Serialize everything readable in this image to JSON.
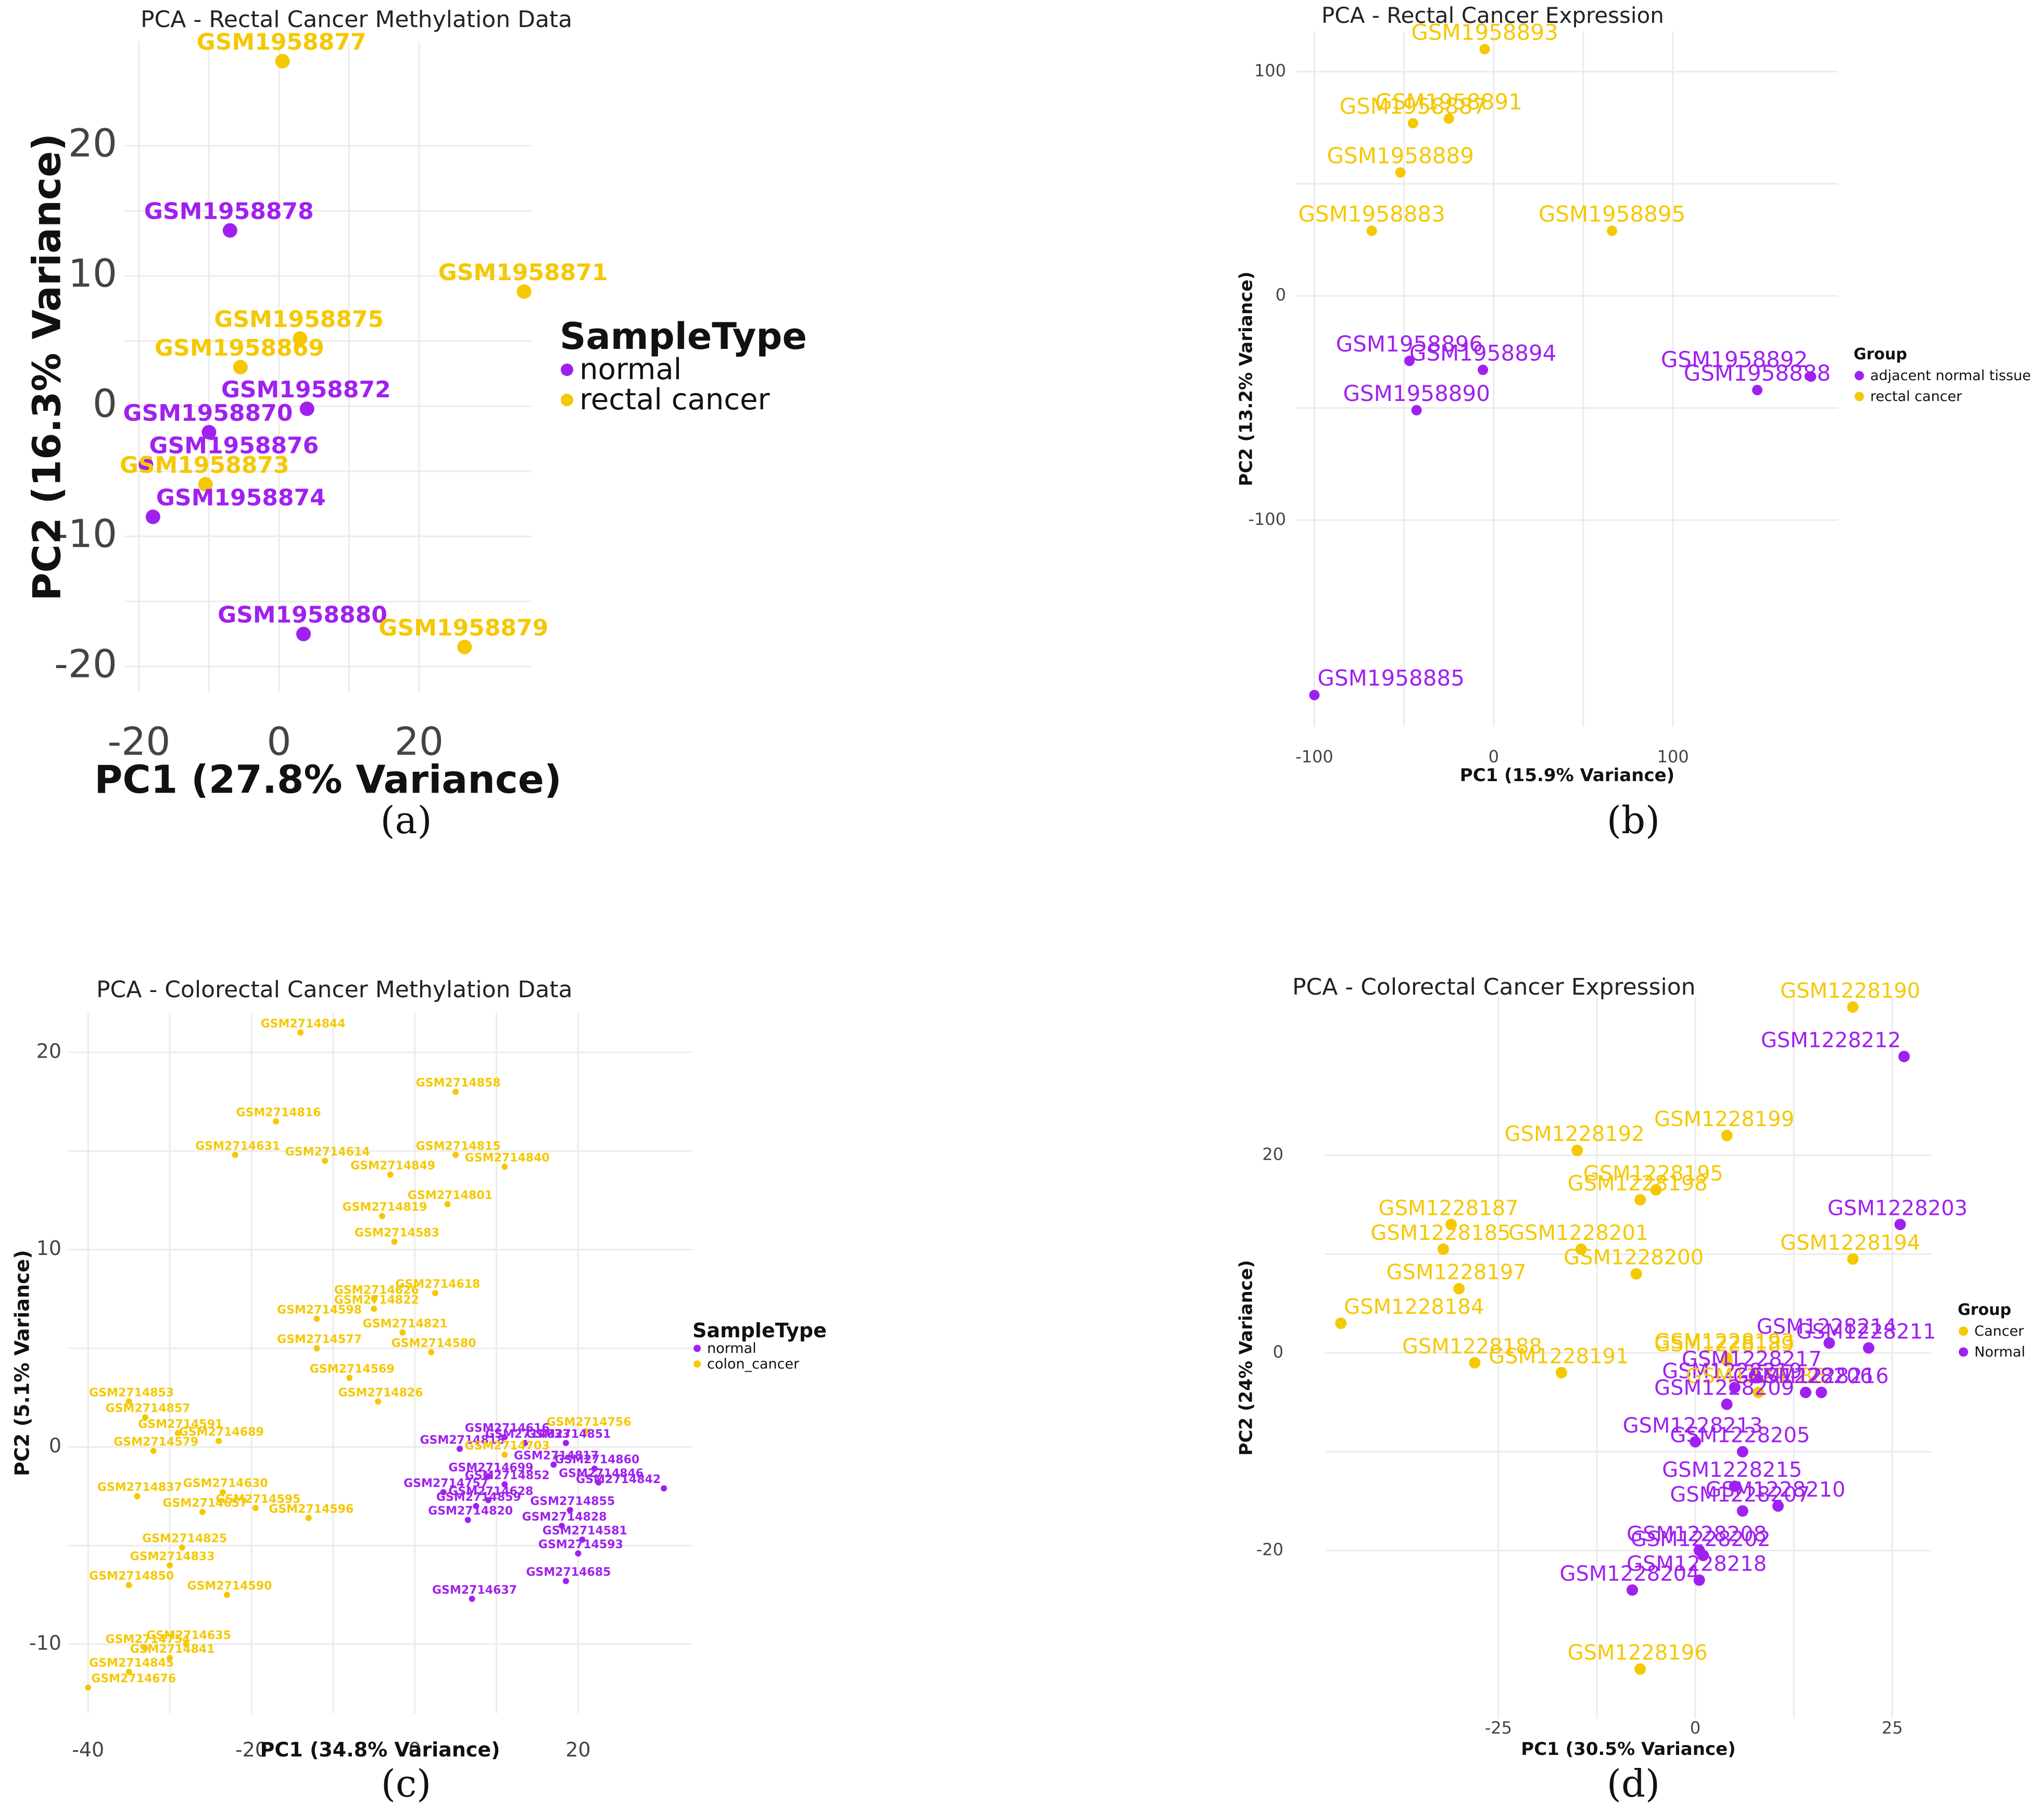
{
  "colors": {
    "normal": "#a020f0",
    "cancer": "#f5c800",
    "grid": "#ebebeb"
  },
  "chart_data": [
    {
      "id": "a",
      "type": "scatter",
      "panel_label": "(a)",
      "title": "PCA - Rectal Cancer Methylation Data",
      "xlabel": "PC1 (27.8% Variance)",
      "ylabel": "PC2 (16.3% Variance)",
      "xlim": [
        -22,
        36
      ],
      "ylim": [
        -22,
        28
      ],
      "xticks": [
        -20,
        0,
        20
      ],
      "yticks": [
        -20,
        -10,
        0,
        10,
        20
      ],
      "grid": true,
      "legend": {
        "title": "SampleType",
        "position": "right",
        "entries": [
          {
            "label": "normal",
            "group": "normal"
          },
          {
            "label": "rectal cancer",
            "group": "cancer"
          }
        ]
      },
      "points": [
        {
          "label": "GSM1958877",
          "x": 0.5,
          "y": 26.5,
          "group": "cancer"
        },
        {
          "label": "GSM1958878",
          "x": -7,
          "y": 13.5,
          "group": "normal"
        },
        {
          "label": "GSM1958871",
          "x": 35,
          "y": 8.8,
          "group": "cancer"
        },
        {
          "label": "GSM1958875",
          "x": 3,
          "y": 5.2,
          "group": "cancer"
        },
        {
          "label": "GSM1958869",
          "x": -5.5,
          "y": 3,
          "group": "cancer"
        },
        {
          "label": "GSM1958872",
          "x": 4,
          "y": -0.2,
          "group": "normal"
        },
        {
          "label": "GSM1958870",
          "x": -10,
          "y": -2,
          "group": "normal"
        },
        {
          "label": "GSM1958876",
          "x": -19,
          "y": -4.5,
          "group": "normal"
        },
        {
          "label": "GSM1958873",
          "x": -10.5,
          "y": -6,
          "group": "cancer"
        },
        {
          "label": "GSM1958874",
          "x": -18,
          "y": -8.5,
          "group": "normal"
        },
        {
          "label": "GSM1958880",
          "x": 3.5,
          "y": -17.5,
          "group": "normal"
        },
        {
          "label": "GSM1958879",
          "x": 26.5,
          "y": -18.5,
          "group": "cancer"
        }
      ]
    },
    {
      "id": "b",
      "type": "scatter",
      "panel_label": "(b)",
      "title": "PCA - Rectal Cancer Expression",
      "xlabel": "PC1 (15.9% Variance)",
      "ylabel": "PC2 (13.2% Variance)",
      "xlim": [
        -110,
        192
      ],
      "ylim": [
        -192,
        118
      ],
      "xticks": [
        -100,
        0,
        100
      ],
      "yticks": [
        -100,
        0,
        100
      ],
      "grid": true,
      "legend": {
        "title": "Group",
        "position": "right",
        "entries": [
          {
            "label": "adjacent normal tissue",
            "group": "normal"
          },
          {
            "label": "rectal cancer",
            "group": "cancer"
          }
        ]
      },
      "points": [
        {
          "label": "GSM1958893",
          "x": -5,
          "y": 110,
          "group": "cancer"
        },
        {
          "label": "GSM1958891",
          "x": -25,
          "y": 79,
          "group": "cancer"
        },
        {
          "label": "GSM1958887",
          "x": -45,
          "y": 77,
          "group": "cancer"
        },
        {
          "label": "GSM1958889",
          "x": -52,
          "y": 55,
          "group": "cancer"
        },
        {
          "label": "GSM1958883",
          "x": -68,
          "y": 29,
          "group": "cancer"
        },
        {
          "label": "GSM1958895",
          "x": 66,
          "y": 29,
          "group": "cancer"
        },
        {
          "label": "GSM1958896",
          "x": -47,
          "y": -29,
          "group": "normal"
        },
        {
          "label": "GSM1958894",
          "x": -6,
          "y": -33,
          "group": "normal"
        },
        {
          "label": "GSM1958890",
          "x": -43,
          "y": -51,
          "group": "normal"
        },
        {
          "label": "GSM1958892",
          "x": 177,
          "y": -36,
          "group": "normal"
        },
        {
          "label": "GSM1958888",
          "x": 147,
          "y": -42,
          "group": "normal"
        },
        {
          "label": "GSM1958885",
          "x": -100,
          "y": -178,
          "group": "normal"
        }
      ]
    },
    {
      "id": "c",
      "type": "scatter",
      "panel_label": "(c)",
      "title": "PCA - Colorectal Cancer Methylation Data",
      "xlabel": "PC1 (34.8% Variance)",
      "ylabel": "PC2 (5.1% Variance)",
      "xlim": [
        -42.5,
        34
      ],
      "ylim": [
        -13.5,
        22
      ],
      "xticks": [
        -40,
        -20,
        0,
        20
      ],
      "yticks": [
        -10,
        0,
        10,
        20
      ],
      "grid": true,
      "legend": {
        "title": "SampleType",
        "position": "right",
        "entries": [
          {
            "label": "normal",
            "group": "normal"
          },
          {
            "label": "colon_cancer",
            "group": "cancer"
          }
        ]
      },
      "points": [
        {
          "label": "GSM2714844",
          "x": -14,
          "y": 21,
          "group": "cancer"
        },
        {
          "label": "GSM2714858",
          "x": 5,
          "y": 18,
          "group": "cancer"
        },
        {
          "label": "GSM2714816",
          "x": -17,
          "y": 16.5,
          "group": "cancer"
        },
        {
          "label": "GSM2714631",
          "x": -22,
          "y": 14.8,
          "group": "cancer"
        },
        {
          "label": "GSM2714614",
          "x": -11,
          "y": 14.5,
          "group": "cancer"
        },
        {
          "label": "GSM2714849",
          "x": -3,
          "y": 13.8,
          "group": "cancer"
        },
        {
          "label": "GSM2714815",
          "x": 5,
          "y": 14.8,
          "group": "cancer"
        },
        {
          "label": "GSM2714840",
          "x": 11,
          "y": 14.2,
          "group": "cancer"
        },
        {
          "label": "GSM2714801",
          "x": 4,
          "y": 12.3,
          "group": "cancer"
        },
        {
          "label": "GSM2714819",
          "x": -4,
          "y": 11.7,
          "group": "cancer"
        },
        {
          "label": "GSM2714583",
          "x": -2.5,
          "y": 10.4,
          "group": "cancer"
        },
        {
          "label": "GSM2714626",
          "x": -5,
          "y": 7.5,
          "group": "cancer"
        },
        {
          "label": "GSM2714618",
          "x": 2.5,
          "y": 7.8,
          "group": "cancer"
        },
        {
          "label": "GSM2714822",
          "x": -5,
          "y": 7,
          "group": "cancer"
        },
        {
          "label": "GSM2714598",
          "x": -12,
          "y": 6.5,
          "group": "cancer"
        },
        {
          "label": "GSM2714821",
          "x": -1.5,
          "y": 5.8,
          "group": "cancer"
        },
        {
          "label": "GSM2714577",
          "x": -12,
          "y": 5,
          "group": "cancer"
        },
        {
          "label": "GSM2714580",
          "x": 2,
          "y": 4.8,
          "group": "cancer"
        },
        {
          "label": "GSM2714569",
          "x": -8,
          "y": 3.5,
          "group": "cancer"
        },
        {
          "label": "GSM2714826",
          "x": -4.5,
          "y": 2.3,
          "group": "cancer"
        },
        {
          "label": "GSM2714853",
          "x": -35,
          "y": 2.3,
          "group": "cancer"
        },
        {
          "label": "GSM2714857",
          "x": -33,
          "y": 1.5,
          "group": "cancer"
        },
        {
          "label": "GSM2714591",
          "x": -29,
          "y": 0.7,
          "group": "cancer"
        },
        {
          "label": "GSM2714689",
          "x": -24,
          "y": 0.3,
          "group": "cancer"
        },
        {
          "label": "GSM2714579",
          "x": -32,
          "y": -0.2,
          "group": "cancer"
        },
        {
          "label": "GSM2714756",
          "x": 21,
          "y": 0.8,
          "group": "cancer"
        },
        {
          "label": "GSM2714851",
          "x": 18.5,
          "y": 0.2,
          "group": "normal"
        },
        {
          "label": "GSM2714616",
          "x": 11,
          "y": 0.5,
          "group": "normal"
        },
        {
          "label": "GSM2714633",
          "x": 13.5,
          "y": 0.2,
          "group": "normal"
        },
        {
          "label": "GSM2714818",
          "x": 5.5,
          "y": -0.1,
          "group": "normal"
        },
        {
          "label": "GSM2714703",
          "x": 11,
          "y": -0.4,
          "group": "cancer"
        },
        {
          "label": "GSM2714817",
          "x": 17,
          "y": -0.9,
          "group": "normal"
        },
        {
          "label": "GSM2714860",
          "x": 22,
          "y": -1.1,
          "group": "normal"
        },
        {
          "label": "GSM2714699",
          "x": 9,
          "y": -1.5,
          "group": "normal"
        },
        {
          "label": "GSM2714846",
          "x": 22.5,
          "y": -1.8,
          "group": "normal"
        },
        {
          "label": "GSM2714757",
          "x": 3.5,
          "y": -2.3,
          "group": "normal"
        },
        {
          "label": "GSM2714852",
          "x": 11,
          "y": -1.9,
          "group": "normal"
        },
        {
          "label": "GSM2714842",
          "x": 30.5,
          "y": -2.1,
          "group": "normal"
        },
        {
          "label": "GSM2714628",
          "x": 9,
          "y": -2.7,
          "group": "normal"
        },
        {
          "label": "GSM2714859",
          "x": 7.5,
          "y": -3,
          "group": "normal"
        },
        {
          "label": "GSM2714855",
          "x": 19,
          "y": -3.2,
          "group": "normal"
        },
        {
          "label": "GSM2714820",
          "x": 6.5,
          "y": -3.7,
          "group": "normal"
        },
        {
          "label": "GSM2714828",
          "x": 18,
          "y": -4,
          "group": "normal"
        },
        {
          "label": "GSM2714581",
          "x": 20.5,
          "y": -4.7,
          "group": "normal"
        },
        {
          "label": "GSM2714593",
          "x": 20,
          "y": -5.4,
          "group": "normal"
        },
        {
          "label": "GSM2714837",
          "x": -34,
          "y": -2.5,
          "group": "cancer"
        },
        {
          "label": "GSM2714630",
          "x": -23.5,
          "y": -2.3,
          "group": "cancer"
        },
        {
          "label": "GSM2714595",
          "x": -19.5,
          "y": -3.1,
          "group": "cancer"
        },
        {
          "label": "GSM2714657",
          "x": -26,
          "y": -3.3,
          "group": "cancer"
        },
        {
          "label": "GSM2714596",
          "x": -13,
          "y": -3.6,
          "group": "cancer"
        },
        {
          "label": "GSM2714825",
          "x": -28.5,
          "y": -5.1,
          "group": "cancer"
        },
        {
          "label": "GSM2714833",
          "x": -30,
          "y": -6,
          "group": "cancer"
        },
        {
          "label": "GSM2714850",
          "x": -35,
          "y": -7,
          "group": "cancer"
        },
        {
          "label": "GSM2714590",
          "x": -23,
          "y": -7.5,
          "group": "cancer"
        },
        {
          "label": "GSM2714685",
          "x": 18.5,
          "y": -6.8,
          "group": "normal"
        },
        {
          "label": "GSM2714637",
          "x": 7,
          "y": -7.7,
          "group": "normal"
        },
        {
          "label": "GSM2714635",
          "x": -28,
          "y": -10,
          "group": "cancer"
        },
        {
          "label": "GSM2714754",
          "x": -33,
          "y": -10.2,
          "group": "cancer"
        },
        {
          "label": "GSM2714841",
          "x": -30,
          "y": -10.7,
          "group": "cancer"
        },
        {
          "label": "GSM2714845",
          "x": -35,
          "y": -11.4,
          "group": "cancer"
        },
        {
          "label": "GSM2714676",
          "x": -40,
          "y": -12.2,
          "group": "cancer"
        }
      ]
    },
    {
      "id": "d",
      "type": "scatter",
      "panel_label": "(d)",
      "title": "PCA - Colorectal Cancer Expression",
      "xlabel": "PC1 (30.5% Variance)",
      "ylabel": "PC2 (24% Variance)",
      "xlim": [
        -47,
        30
      ],
      "ylim": [
        -37,
        36
      ],
      "xticks": [
        -25,
        0,
        25
      ],
      "yticks": [
        -20,
        0,
        20
      ],
      "grid": true,
      "legend": {
        "title": "Group",
        "position": "right",
        "entries": [
          {
            "label": "Cancer",
            "group": "cancer"
          },
          {
            "label": "Normal",
            "group": "normal"
          }
        ]
      },
      "points": [
        {
          "label": "GSM1228190",
          "x": 20,
          "y": 35,
          "group": "cancer"
        },
        {
          "label": "GSM1228212",
          "x": 26.5,
          "y": 30,
          "group": "normal"
        },
        {
          "label": "GSM1228199",
          "x": 4,
          "y": 22,
          "group": "cancer"
        },
        {
          "label": "GSM1228192",
          "x": -15,
          "y": 20.5,
          "group": "cancer"
        },
        {
          "label": "GSM1228195",
          "x": -5,
          "y": 16.5,
          "group": "cancer"
        },
        {
          "label": "GSM1228198",
          "x": -7,
          "y": 15.5,
          "group": "cancer"
        },
        {
          "label": "GSM1228187",
          "x": -31,
          "y": 13,
          "group": "cancer"
        },
        {
          "label": "GSM1228203",
          "x": 26,
          "y": 13,
          "group": "normal"
        },
        {
          "label": "GSM1228201",
          "x": -14.5,
          "y": 10.5,
          "group": "cancer"
        },
        {
          "label": "GSM1228185",
          "x": -32,
          "y": 10.5,
          "group": "cancer"
        },
        {
          "label": "GSM1228194",
          "x": 20,
          "y": 9.5,
          "group": "cancer"
        },
        {
          "label": "GSM1228200",
          "x": -7.5,
          "y": 8,
          "group": "cancer"
        },
        {
          "label": "GSM1228197",
          "x": -30,
          "y": 6.5,
          "group": "cancer"
        },
        {
          "label": "GSM1228184",
          "x": -45,
          "y": 3,
          "group": "cancer"
        },
        {
          "label": "GSM1228214",
          "x": 17,
          "y": 1,
          "group": "normal"
        },
        {
          "label": "GSM1228211",
          "x": 22,
          "y": 0.5,
          "group": "normal"
        },
        {
          "label": "GSM1228193",
          "x": 4,
          "y": -0.5,
          "group": "cancer"
        },
        {
          "label": "GSM1228188",
          "x": -28,
          "y": -1,
          "group": "cancer"
        },
        {
          "label": "GSM1228189",
          "x": 4,
          "y": -0.8,
          "group": "cancer"
        },
        {
          "label": "GSM1228191",
          "x": -17,
          "y": -2,
          "group": "cancer"
        },
        {
          "label": "GSM1228217",
          "x": 7.5,
          "y": -2.3,
          "group": "normal"
        },
        {
          "label": "GSM1228219",
          "x": 5,
          "y": -3.5,
          "group": "normal"
        },
        {
          "label": "GSM1228186",
          "x": 8,
          "y": -4,
          "group": "cancer"
        },
        {
          "label": "GSM1228206",
          "x": 14,
          "y": -4,
          "group": "normal"
        },
        {
          "label": "GSM1228209",
          "x": 4,
          "y": -5.2,
          "group": "normal"
        },
        {
          "label": "GSM1228216",
          "x": 16,
          "y": -4,
          "group": "normal"
        },
        {
          "label": "GSM1228213",
          "x": 0,
          "y": -9,
          "group": "normal"
        },
        {
          "label": "GSM1228205",
          "x": 6,
          "y": -10,
          "group": "normal"
        },
        {
          "label": "GSM1228215",
          "x": 5,
          "y": -13.5,
          "group": "normal"
        },
        {
          "label": "GSM1228210",
          "x": 10.5,
          "y": -15.5,
          "group": "normal"
        },
        {
          "label": "GSM1228207",
          "x": 6,
          "y": -16,
          "group": "normal"
        },
        {
          "label": "GSM1228208",
          "x": 0.5,
          "y": -20,
          "group": "normal"
        },
        {
          "label": "GSM1228202",
          "x": 1,
          "y": -20.5,
          "group": "normal"
        },
        {
          "label": "GSM1228218",
          "x": 0.5,
          "y": -23,
          "group": "normal"
        },
        {
          "label": "GSM1228204",
          "x": -8,
          "y": -24,
          "group": "normal"
        },
        {
          "label": "GSM1228196",
          "x": -7,
          "y": -32,
          "group": "cancer"
        }
      ]
    }
  ]
}
